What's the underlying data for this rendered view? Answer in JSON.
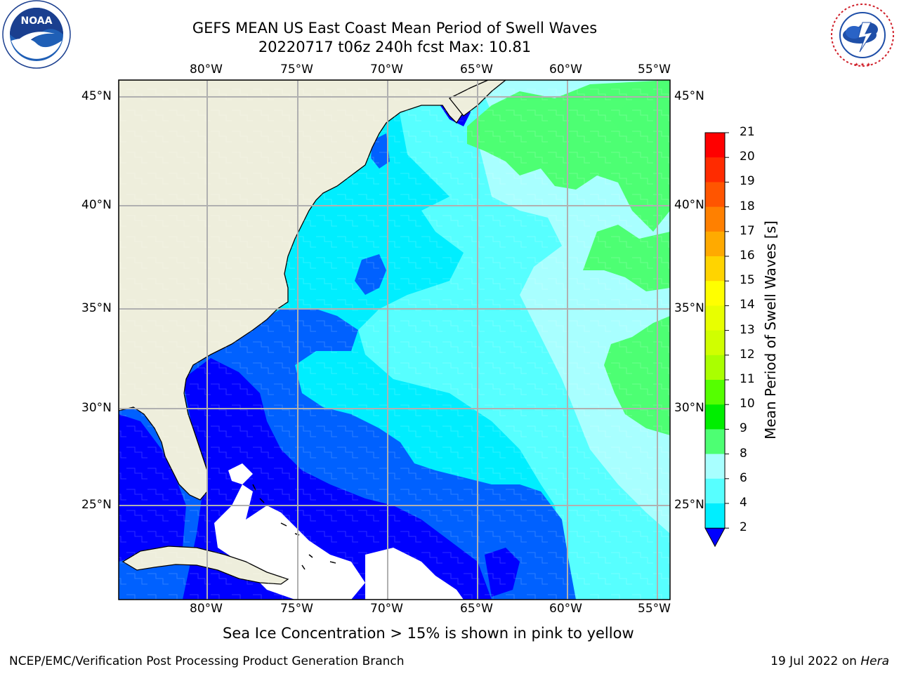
{
  "header": {
    "title_line1": "GEFS MEAN US East Coast Mean Period of Swell Waves",
    "title_line2": "20220717 t06z 240h fcst   Max: 10.81"
  },
  "logos": {
    "left": {
      "icon": "noaa-logo",
      "text": "NOAA",
      "ring_text": "NATIONAL OCEANIC AND ATMOSPHERIC ADMINISTRATION · U.S. DEPARTMENT OF COMMERCE"
    },
    "right": {
      "icon": "nws-logo",
      "ring_text": "NATIONAL WEATHER SERVICE"
    }
  },
  "map": {
    "lon_labels": [
      "80°W",
      "75°W",
      "70°W",
      "65°W",
      "60°W",
      "55°W"
    ],
    "lat_labels": [
      "45°N",
      "40°N",
      "35°N",
      "30°N",
      "25°N"
    ],
    "colors": {
      "land": "#eeeedc",
      "grid": "#b0b0b0",
      "band_2_4": "#0061ff",
      "band_4_6": "#00eeff",
      "band_6_8": "#57ffff",
      "band_8_9": "#a8ffff",
      "band_9_10": "#4dff73",
      "below_2": "#0000ff",
      "missing": "#ffffff"
    }
  },
  "colorbar": {
    "label": "Mean Period of Swell Waves [s]",
    "ticks": [
      "21",
      "20",
      "19",
      "18",
      "17",
      "16",
      "15",
      "14",
      "13",
      "12",
      "11",
      "10",
      "9",
      "8",
      "6",
      "4",
      "2"
    ],
    "colors": [
      "#ff0000",
      "#ff2b00",
      "#ff5500",
      "#ff8000",
      "#ffaa00",
      "#ffd400",
      "#ffff00",
      "#e8ff00",
      "#d0ff00",
      "#aaff00",
      "#55ff00",
      "#00ee00",
      "#4dff73",
      "#a8ffff",
      "#57ffff",
      "#00eeff",
      "#0061ff"
    ],
    "under_color": "#0000ff"
  },
  "notes": {
    "ice": "Sea Ice Concentration > 15% is shown in pink to yellow"
  },
  "footer": {
    "left": "NCEP/EMC/Verification Post Processing Product Generation Branch",
    "right_date": "19 Jul 2022 on ",
    "right_machine": "Hera"
  }
}
